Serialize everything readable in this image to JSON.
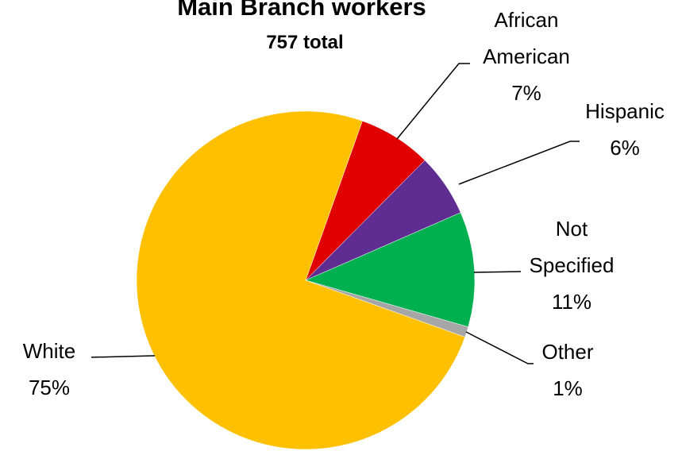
{
  "chart_data": {
    "type": "pie",
    "title": "Main Branch workers",
    "subtitle": "757 total",
    "categories": [
      "African American",
      "Hispanic",
      "Not Specified",
      "Other",
      "White"
    ],
    "values": [
      7,
      6,
      11,
      1,
      75
    ],
    "value_labels": [
      "7%",
      "6%",
      "11%",
      "1%",
      "75%"
    ],
    "colors": [
      "#e00000",
      "#5f2c91",
      "#00b050",
      "#a6a6a6",
      "#ffc000"
    ]
  }
}
